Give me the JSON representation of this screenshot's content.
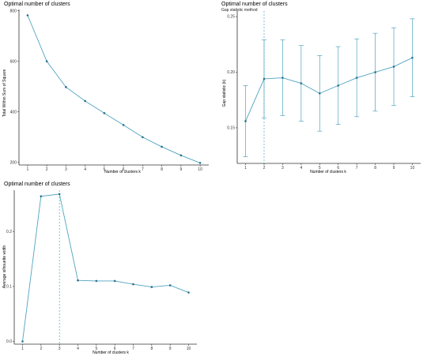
{
  "palette": {
    "line": "#4fa3c0",
    "point": "#2b6f8a",
    "axis": "#333333",
    "vline": "#4fa3c0"
  },
  "chart_data": [
    {
      "type": "line",
      "title": "Optimal number of clusters",
      "subtitle": "",
      "xlabel": "Number of clusters k",
      "ylabel": "Total Within Sum of Square",
      "x": [
        1,
        2,
        3,
        4,
        5,
        6,
        7,
        8,
        9,
        10
      ],
      "values": [
        782,
        600,
        498,
        443,
        395,
        348,
        300,
        262,
        228,
        198
      ],
      "ylim": [
        190,
        805
      ],
      "yticks": [
        200,
        400,
        600,
        800
      ],
      "xticks": [
        1,
        2,
        3,
        4,
        5,
        6,
        7,
        8,
        9,
        10
      ],
      "grid": false,
      "optimal_k": null
    },
    {
      "type": "line",
      "title": "Optimal number of clusters",
      "subtitle": "Gap statistic method",
      "xlabel": "Number of clusters k",
      "ylabel": "Gap statistic (k)",
      "x": [
        1,
        2,
        3,
        4,
        5,
        6,
        7,
        8,
        9,
        10
      ],
      "values": [
        0.156,
        0.194,
        0.195,
        0.19,
        0.181,
        0.188,
        0.195,
        0.2,
        0.205,
        0.213
      ],
      "errors": [
        0.032,
        0.035,
        0.034,
        0.034,
        0.034,
        0.035,
        0.035,
        0.035,
        0.035,
        0.035
      ],
      "ylim": [
        0.118,
        0.255
      ],
      "yticks": [
        0.15,
        0.2,
        0.25
      ],
      "ytick_labels": [
        "0.15",
        "0.20",
        "0.25"
      ],
      "xticks": [
        1,
        2,
        3,
        4,
        5,
        6,
        7,
        8,
        9,
        10
      ],
      "grid": false,
      "optimal_k": 2
    },
    {
      "type": "line",
      "title": "Optimal number of clusters",
      "subtitle": "",
      "xlabel": "Number of clusters k",
      "ylabel": "Average silhouette width",
      "x": [
        1,
        2,
        3,
        4,
        5,
        6,
        7,
        8,
        9,
        10
      ],
      "values": [
        0.0,
        0.264,
        0.268,
        0.111,
        0.11,
        0.11,
        0.104,
        0.099,
        0.102,
        0.089
      ],
      "ylim": [
        -0.005,
        0.275
      ],
      "yticks": [
        0.0,
        0.1,
        0.2
      ],
      "ytick_labels": [
        "0.0",
        "0.1",
        "0.2"
      ],
      "xticks": [
        1,
        2,
        3,
        4,
        5,
        6,
        7,
        8,
        9,
        10
      ],
      "grid": false,
      "optimal_k": 3
    }
  ]
}
